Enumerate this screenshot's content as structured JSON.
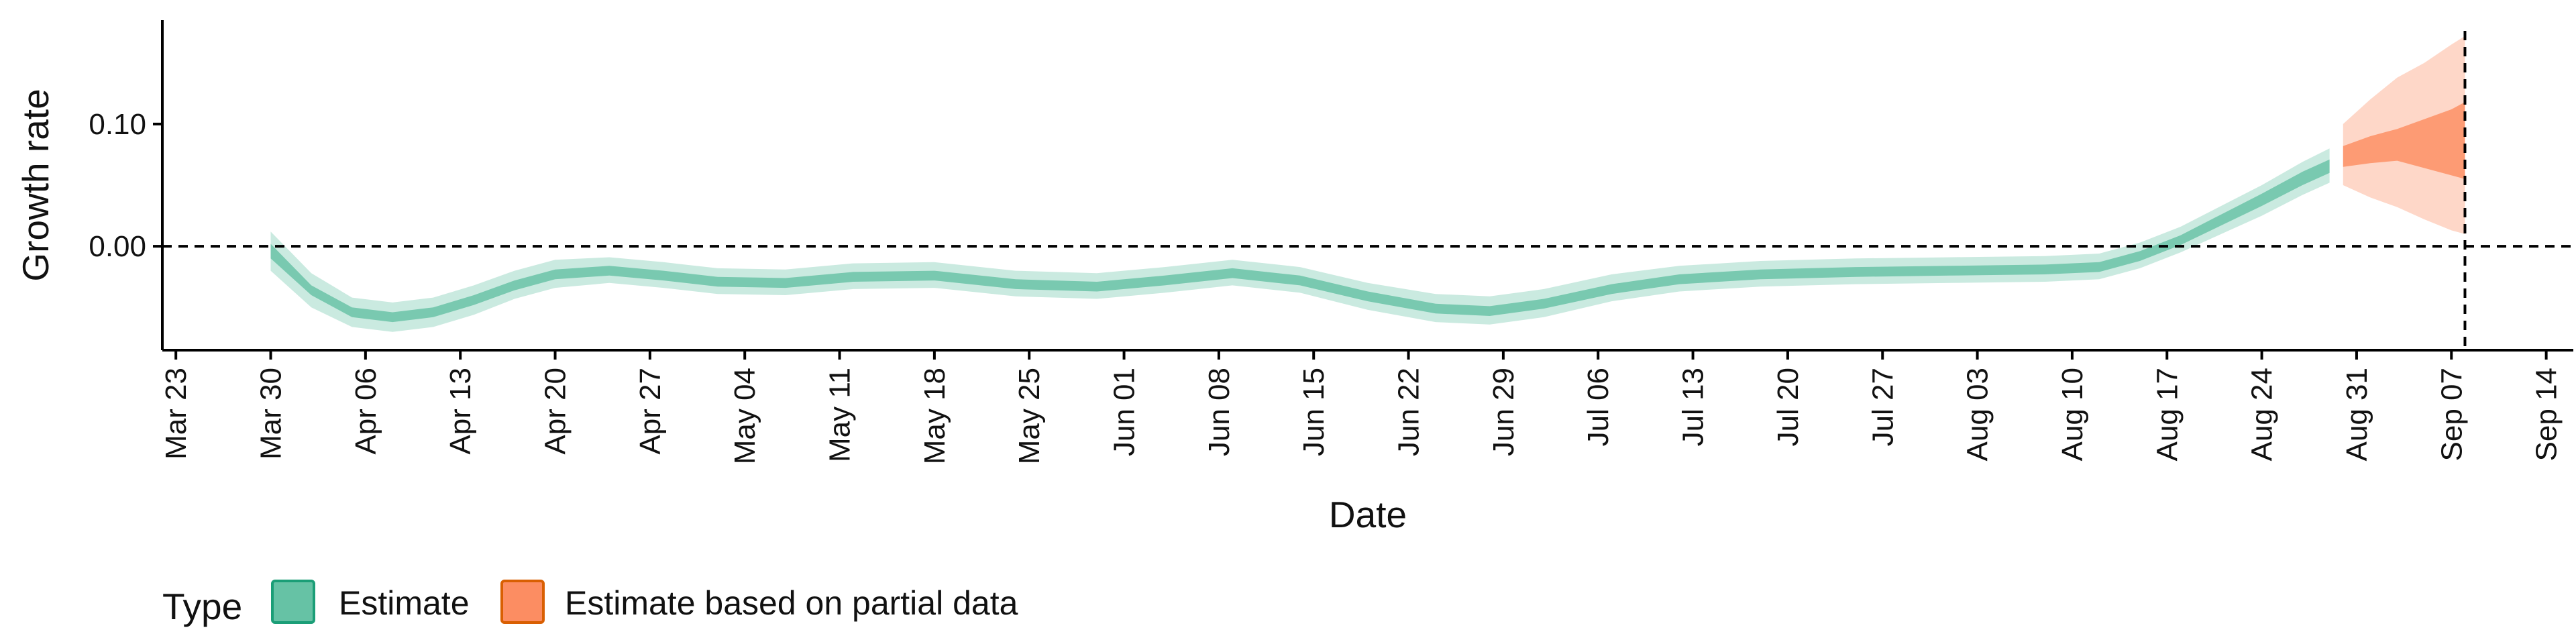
{
  "chart_data": {
    "type": "line",
    "title": "",
    "xlabel": "Date",
    "ylabel": "Growth rate",
    "x_range": [
      "2020-03-22",
      "2020-09-16"
    ],
    "y_range": [
      -0.085,
      0.185
    ],
    "y_ticks": [
      0.0,
      0.1
    ],
    "y_tick_labels": [
      "0.00",
      "0.10"
    ],
    "x_ticks": [
      "2020-03-23",
      "2020-03-30",
      "2020-04-06",
      "2020-04-13",
      "2020-04-20",
      "2020-04-27",
      "2020-05-04",
      "2020-05-11",
      "2020-05-18",
      "2020-05-25",
      "2020-06-01",
      "2020-06-08",
      "2020-06-15",
      "2020-06-22",
      "2020-06-29",
      "2020-07-06",
      "2020-07-13",
      "2020-07-20",
      "2020-07-27",
      "2020-08-03",
      "2020-08-10",
      "2020-08-17",
      "2020-08-24",
      "2020-08-31",
      "2020-09-07",
      "2020-09-14"
    ],
    "x_tick_labels": [
      "Mar 23",
      "Mar 30",
      "Apr 06",
      "Apr 13",
      "Apr 20",
      "Apr 27",
      "May 04",
      "May 11",
      "May 18",
      "May 25",
      "Jun 01",
      "Jun 08",
      "Jun 15",
      "Jun 22",
      "Jun 29",
      "Jul 06",
      "Jul 13",
      "Jul 20",
      "Jul 27",
      "Aug 03",
      "Aug 10",
      "Aug 17",
      "Aug 24",
      "Aug 31",
      "Sep 07",
      "Sep 14"
    ],
    "reference_lines": {
      "horizontal_y": 0.0,
      "vertical_date": "2020-09-08",
      "style": "dashed"
    },
    "legend": {
      "title": "Type",
      "position": "bottom-left",
      "entries": [
        "Estimate",
        "Estimate based on partial data"
      ]
    },
    "series": [
      {
        "name": "Estimate",
        "color": "#66c2a5",
        "points": [
          {
            "x": "2020-03-30",
            "lo90": -0.02,
            "lo50": -0.01,
            "hi50": 0.002,
            "hi90": 0.012
          },
          {
            "x": "2020-04-02",
            "lo90": -0.05,
            "lo50": -0.04,
            "hi50": -0.032,
            "hi90": -0.022
          },
          {
            "x": "2020-04-05",
            "lo90": -0.066,
            "lo50": -0.058,
            "hi50": -0.05,
            "hi90": -0.042
          },
          {
            "x": "2020-04-08",
            "lo90": -0.07,
            "lo50": -0.062,
            "hi50": -0.054,
            "hi90": -0.046
          },
          {
            "x": "2020-04-11",
            "lo90": -0.066,
            "lo50": -0.058,
            "hi50": -0.05,
            "hi90": -0.042
          },
          {
            "x": "2020-04-14",
            "lo90": -0.056,
            "lo50": -0.048,
            "hi50": -0.04,
            "hi90": -0.032
          },
          {
            "x": "2020-04-17",
            "lo90": -0.043,
            "lo50": -0.036,
            "hi50": -0.028,
            "hi90": -0.02
          },
          {
            "x": "2020-04-20",
            "lo90": -0.034,
            "lo50": -0.027,
            "hi50": -0.019,
            "hi90": -0.011
          },
          {
            "x": "2020-04-24",
            "lo90": -0.03,
            "lo50": -0.024,
            "hi50": -0.016,
            "hi90": -0.009
          },
          {
            "x": "2020-04-28",
            "lo90": -0.034,
            "lo50": -0.028,
            "hi50": -0.02,
            "hi90": -0.013
          },
          {
            "x": "2020-05-02",
            "lo90": -0.039,
            "lo50": -0.033,
            "hi50": -0.025,
            "hi90": -0.018
          },
          {
            "x": "2020-05-07",
            "lo90": -0.04,
            "lo50": -0.034,
            "hi50": -0.026,
            "hi90": -0.019
          },
          {
            "x": "2020-05-12",
            "lo90": -0.035,
            "lo50": -0.029,
            "hi50": -0.021,
            "hi90": -0.014
          },
          {
            "x": "2020-05-18",
            "lo90": -0.034,
            "lo50": -0.028,
            "hi50": -0.02,
            "hi90": -0.013
          },
          {
            "x": "2020-05-24",
            "lo90": -0.041,
            "lo50": -0.035,
            "hi50": -0.027,
            "hi90": -0.02
          },
          {
            "x": "2020-05-30",
            "lo90": -0.043,
            "lo50": -0.037,
            "hi50": -0.029,
            "hi90": -0.022
          },
          {
            "x": "2020-06-04",
            "lo90": -0.038,
            "lo50": -0.032,
            "hi50": -0.024,
            "hi90": -0.017
          },
          {
            "x": "2020-06-09",
            "lo90": -0.032,
            "lo50": -0.026,
            "hi50": -0.018,
            "hi90": -0.011
          },
          {
            "x": "2020-06-14",
            "lo90": -0.038,
            "lo50": -0.032,
            "hi50": -0.024,
            "hi90": -0.017
          },
          {
            "x": "2020-06-19",
            "lo90": -0.052,
            "lo50": -0.045,
            "hi50": -0.037,
            "hi90": -0.03
          },
          {
            "x": "2020-06-24",
            "lo90": -0.062,
            "lo50": -0.055,
            "hi50": -0.047,
            "hi90": -0.039
          },
          {
            "x": "2020-06-28",
            "lo90": -0.064,
            "lo50": -0.057,
            "hi50": -0.049,
            "hi90": -0.041
          },
          {
            "x": "2020-07-02",
            "lo90": -0.058,
            "lo50": -0.051,
            "hi50": -0.043,
            "hi90": -0.035
          },
          {
            "x": "2020-07-07",
            "lo90": -0.045,
            "lo50": -0.039,
            "hi50": -0.031,
            "hi90": -0.023
          },
          {
            "x": "2020-07-12",
            "lo90": -0.037,
            "lo50": -0.031,
            "hi50": -0.023,
            "hi90": -0.016
          },
          {
            "x": "2020-07-18",
            "lo90": -0.033,
            "lo50": -0.027,
            "hi50": -0.019,
            "hi90": -0.012
          },
          {
            "x": "2020-07-25",
            "lo90": -0.031,
            "lo50": -0.025,
            "hi50": -0.017,
            "hi90": -0.01
          },
          {
            "x": "2020-08-01",
            "lo90": -0.03,
            "lo50": -0.024,
            "hi50": -0.016,
            "hi90": -0.009
          },
          {
            "x": "2020-08-08",
            "lo90": -0.029,
            "lo50": -0.023,
            "hi50": -0.015,
            "hi90": -0.008
          },
          {
            "x": "2020-08-12",
            "lo90": -0.027,
            "lo50": -0.021,
            "hi50": -0.013,
            "hi90": -0.006
          },
          {
            "x": "2020-08-15",
            "lo90": -0.018,
            "lo50": -0.012,
            "hi50": -0.004,
            "hi90": 0.003
          },
          {
            "x": "2020-08-18",
            "lo90": -0.005,
            "lo50": 0.001,
            "hi50": 0.009,
            "hi90": 0.016
          },
          {
            "x": "2020-08-21",
            "lo90": 0.01,
            "lo50": 0.017,
            "hi50": 0.026,
            "hi90": 0.033
          },
          {
            "x": "2020-08-24",
            "lo90": 0.025,
            "lo50": 0.033,
            "hi50": 0.043,
            "hi90": 0.05
          },
          {
            "x": "2020-08-27",
            "lo90": 0.042,
            "lo50": 0.05,
            "hi50": 0.061,
            "hi90": 0.069
          },
          {
            "x": "2020-08-29",
            "lo90": 0.052,
            "lo50": 0.06,
            "hi50": 0.071,
            "hi90": 0.08
          }
        ]
      },
      {
        "name": "Estimate based on partial data",
        "color": "#fc8d62",
        "points": [
          {
            "x": "2020-08-30",
            "lo90": 0.05,
            "lo50": 0.065,
            "hi50": 0.082,
            "hi90": 0.1
          },
          {
            "x": "2020-09-01",
            "lo90": 0.04,
            "lo50": 0.068,
            "hi50": 0.09,
            "hi90": 0.12
          },
          {
            "x": "2020-09-03",
            "lo90": 0.032,
            "lo50": 0.07,
            "hi50": 0.096,
            "hi90": 0.138
          },
          {
            "x": "2020-09-05",
            "lo90": 0.022,
            "lo50": 0.064,
            "hi50": 0.104,
            "hi90": 0.15
          },
          {
            "x": "2020-09-07",
            "lo90": 0.013,
            "lo50": 0.058,
            "hi50": 0.112,
            "hi90": 0.165
          },
          {
            "x": "2020-09-08",
            "lo90": 0.01,
            "lo50": 0.055,
            "hi50": 0.118,
            "hi90": 0.172
          }
        ]
      }
    ]
  }
}
